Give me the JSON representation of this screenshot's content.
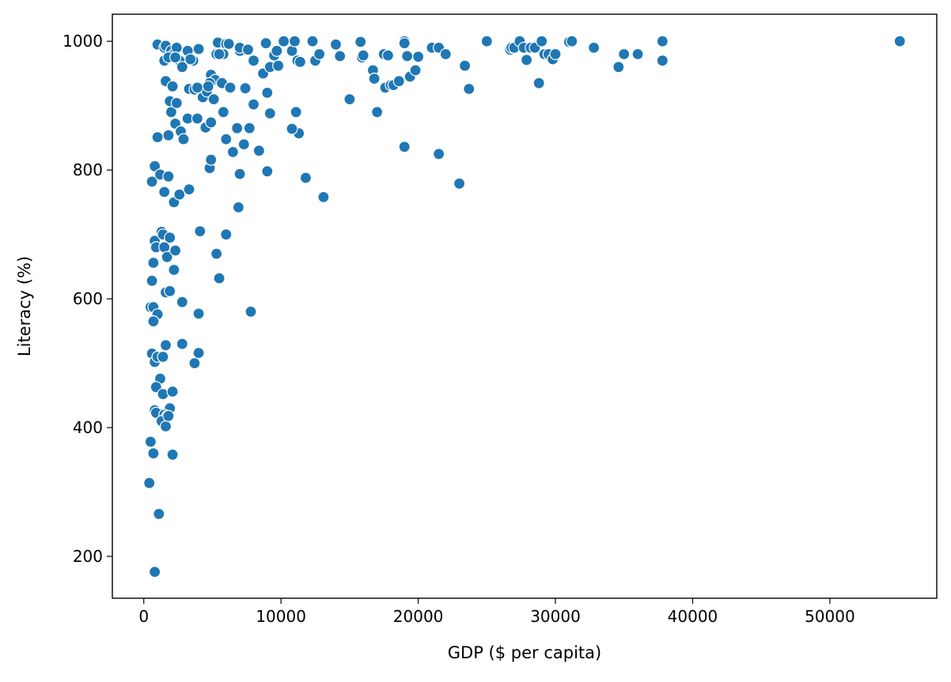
{
  "chart_data": {
    "type": "scatter",
    "title": "",
    "xlabel": "GDP ($ per capita)",
    "ylabel": "Literacy (%)",
    "xlim": [
      -2290,
      57790
    ],
    "ylim": [
      135,
      1042
    ],
    "xticks": [
      0,
      10000,
      20000,
      30000,
      40000,
      50000
    ],
    "yticks": [
      200,
      400,
      600,
      800,
      1000
    ],
    "grid": false,
    "legend": "none",
    "marker_color": "#1f77b4",
    "marker_edge_color": "#ffffff",
    "points": [
      [
        1000,
        995
      ],
      [
        1500,
        990
      ],
      [
        1600,
        993
      ],
      [
        2000,
        985
      ],
      [
        2200,
        980
      ],
      [
        2400,
        990
      ],
      [
        2600,
        970
      ],
      [
        2800,
        960
      ],
      [
        1500,
        970
      ],
      [
        1800,
        975
      ],
      [
        3200,
        985
      ],
      [
        3600,
        970
      ],
      [
        4000,
        988
      ],
      [
        3400,
        972
      ],
      [
        2300,
        975
      ],
      [
        1600,
        938
      ],
      [
        2100,
        930
      ],
      [
        1900,
        907
      ],
      [
        2000,
        890
      ],
      [
        2400,
        904
      ],
      [
        2300,
        872
      ],
      [
        2700,
        860
      ],
      [
        2900,
        848
      ],
      [
        1800,
        854
      ],
      [
        1000,
        851
      ],
      [
        3300,
        926
      ],
      [
        3700,
        925
      ],
      [
        4300,
        913
      ],
      [
        4600,
        922
      ],
      [
        4900,
        948
      ],
      [
        5200,
        940
      ],
      [
        5100,
        910
      ],
      [
        3900,
        928
      ],
      [
        4800,
        935
      ],
      [
        4700,
        930
      ],
      [
        3200,
        880
      ],
      [
        3900,
        880
      ],
      [
        4500,
        866
      ],
      [
        4900,
        874
      ],
      [
        5700,
        935
      ],
      [
        6300,
        928
      ],
      [
        5800,
        890
      ],
      [
        6000,
        848
      ],
      [
        6500,
        828
      ],
      [
        6800,
        865
      ],
      [
        5400,
        998
      ],
      [
        6000,
        996
      ],
      [
        6200,
        996
      ],
      [
        7000,
        985
      ],
      [
        7000,
        990
      ],
      [
        7600,
        987
      ],
      [
        8000,
        970
      ],
      [
        8700,
        950
      ],
      [
        9000,
        920
      ],
      [
        9200,
        960
      ],
      [
        8900,
        997
      ],
      [
        9800,
        962
      ],
      [
        9500,
        978
      ],
      [
        9700,
        985
      ],
      [
        9200,
        888
      ],
      [
        7400,
        927
      ],
      [
        7300,
        840
      ],
      [
        7700,
        865
      ],
      [
        8000,
        902
      ],
      [
        8400,
        830
      ],
      [
        5300,
        980
      ],
      [
        5800,
        980
      ],
      [
        5500,
        980
      ],
      [
        10200,
        1000
      ],
      [
        10800,
        985
      ],
      [
        11000,
        1000
      ],
      [
        11200,
        970
      ],
      [
        11400,
        968
      ],
      [
        11300,
        857
      ],
      [
        10800,
        864
      ],
      [
        11100,
        890
      ],
      [
        11800,
        788
      ],
      [
        9000,
        798
      ],
      [
        12300,
        1000
      ],
      [
        12500,
        970
      ],
      [
        12800,
        980
      ],
      [
        13100,
        758
      ],
      [
        14000,
        995
      ],
      [
        14300,
        977
      ],
      [
        15000,
        910
      ],
      [
        15800,
        999
      ],
      [
        15900,
        975
      ],
      [
        16000,
        978
      ],
      [
        16700,
        955
      ],
      [
        16800,
        942
      ],
      [
        17000,
        890
      ],
      [
        17500,
        980
      ],
      [
        17600,
        928
      ],
      [
        17800,
        978
      ],
      [
        18000,
        932
      ],
      [
        18200,
        932
      ],
      [
        18600,
        938
      ],
      [
        19000,
        1000
      ],
      [
        19000,
        997
      ],
      [
        19000,
        836
      ],
      [
        19200,
        977
      ],
      [
        19400,
        945
      ],
      [
        19800,
        955
      ],
      [
        20000,
        976
      ],
      [
        21000,
        990
      ],
      [
        21500,
        990
      ],
      [
        21500,
        825
      ],
      [
        22000,
        980
      ],
      [
        23000,
        779
      ],
      [
        23400,
        962
      ],
      [
        23700,
        926
      ],
      [
        25000,
        1000
      ],
      [
        26700,
        987
      ],
      [
        26800,
        990
      ],
      [
        27000,
        990
      ],
      [
        27400,
        1000
      ],
      [
        27700,
        990
      ],
      [
        27900,
        971
      ],
      [
        28200,
        990
      ],
      [
        28500,
        990
      ],
      [
        28800,
        935
      ],
      [
        29000,
        1000
      ],
      [
        29200,
        980
      ],
      [
        29500,
        980
      ],
      [
        29800,
        972
      ],
      [
        30000,
        980
      ],
      [
        31000,
        999
      ],
      [
        31200,
        1000
      ],
      [
        32800,
        990
      ],
      [
        34600,
        960
      ],
      [
        35000,
        980
      ],
      [
        36000,
        980
      ],
      [
        37800,
        1000
      ],
      [
        37800,
        970
      ],
      [
        55100,
        1000
      ],
      [
        600,
        782
      ],
      [
        800,
        806
      ],
      [
        1200,
        793
      ],
      [
        1500,
        766
      ],
      [
        1800,
        790
      ],
      [
        2200,
        750
      ],
      [
        2600,
        762
      ],
      [
        3300,
        770
      ],
      [
        4800,
        803
      ],
      [
        4900,
        816
      ],
      [
        7000,
        794
      ],
      [
        6900,
        742
      ],
      [
        4100,
        705
      ],
      [
        6000,
        700
      ],
      [
        5300,
        670
      ],
      [
        5500,
        632
      ],
      [
        7800,
        580
      ],
      [
        800,
        690
      ],
      [
        900,
        680
      ],
      [
        1300,
        704
      ],
      [
        1400,
        700
      ],
      [
        1500,
        680
      ],
      [
        1700,
        665
      ],
      [
        1900,
        695
      ],
      [
        2200,
        645
      ],
      [
        2300,
        675
      ],
      [
        700,
        656
      ],
      [
        600,
        628
      ],
      [
        500,
        587
      ],
      [
        700,
        587
      ],
      [
        1000,
        576
      ],
      [
        1600,
        610
      ],
      [
        1900,
        612
      ],
      [
        2800,
        595
      ],
      [
        4000,
        577
      ],
      [
        700,
        565
      ],
      [
        600,
        515
      ],
      [
        800,
        502
      ],
      [
        1000,
        510
      ],
      [
        1400,
        510
      ],
      [
        1600,
        528
      ],
      [
        2800,
        530
      ],
      [
        3700,
        500
      ],
      [
        4000,
        516
      ],
      [
        1200,
        476
      ],
      [
        900,
        463
      ],
      [
        1400,
        452
      ],
      [
        2100,
        456
      ],
      [
        1900,
        430
      ],
      [
        800,
        427
      ],
      [
        1100,
        422
      ],
      [
        900,
        423
      ],
      [
        1500,
        420
      ],
      [
        1700,
        418
      ],
      [
        1300,
        410
      ],
      [
        1600,
        402
      ],
      [
        1800,
        418
      ],
      [
        500,
        378
      ],
      [
        700,
        360
      ],
      [
        2100,
        358
      ],
      [
        400,
        314
      ],
      [
        1100,
        266
      ],
      [
        800,
        176
      ]
    ]
  }
}
